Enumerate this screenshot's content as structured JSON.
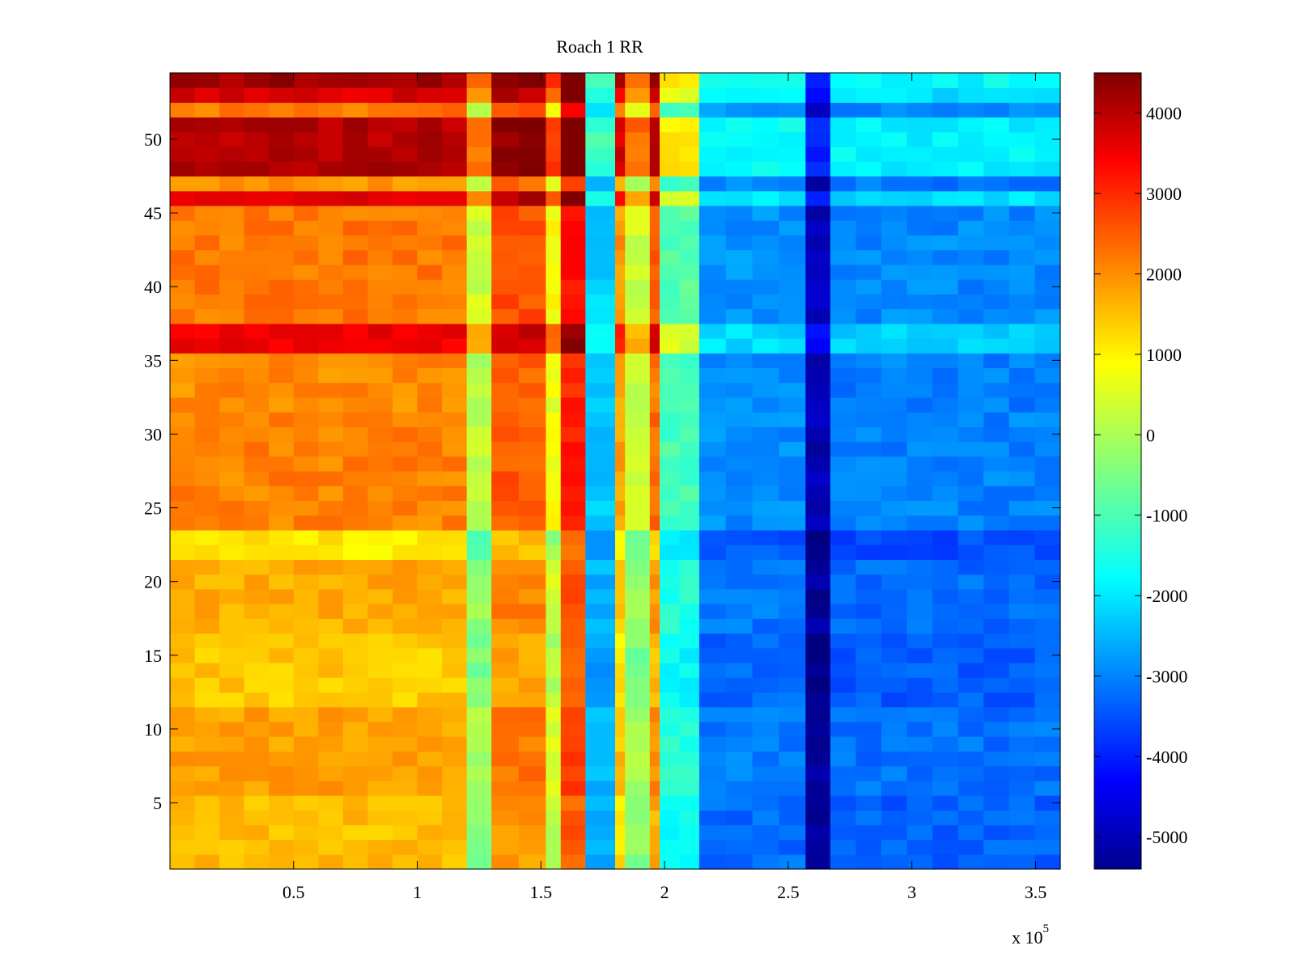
{
  "chart_data": {
    "type": "heatmap",
    "title": "Roach 1 RR",
    "xlabel": "",
    "ylabel": "",
    "x_exponent_label": "x 10",
    "x_exponent_power": "5",
    "xlim": [
      0,
      360000
    ],
    "ylim": [
      0.5,
      54.5
    ],
    "x_ticks": [
      {
        "value": 50000,
        "label": "0.5"
      },
      {
        "value": 100000,
        "label": "1"
      },
      {
        "value": 150000,
        "label": "1.5"
      },
      {
        "value": 200000,
        "label": "2"
      },
      {
        "value": 250000,
        "label": "2.5"
      },
      {
        "value": 300000,
        "label": "3"
      },
      {
        "value": 350000,
        "label": "3.5"
      }
    ],
    "y_ticks": [
      {
        "value": 5,
        "label": "5"
      },
      {
        "value": 10,
        "label": "10"
      },
      {
        "value": 15,
        "label": "15"
      },
      {
        "value": 20,
        "label": "20"
      },
      {
        "value": 25,
        "label": "25"
      },
      {
        "value": 30,
        "label": "30"
      },
      {
        "value": 35,
        "label": "35"
      },
      {
        "value": 40,
        "label": "40"
      },
      {
        "value": 45,
        "label": "45"
      },
      {
        "value": 50,
        "label": "50"
      }
    ],
    "colorbar": {
      "colormap": "jet",
      "clim": [
        -5400,
        4500
      ],
      "ticks": [
        {
          "value": 4000,
          "label": "4000"
        },
        {
          "value": 3000,
          "label": "3000"
        },
        {
          "value": 2000,
          "label": "2000"
        },
        {
          "value": 1000,
          "label": "1000"
        },
        {
          "value": 0,
          "label": "0"
        },
        {
          "value": -1000,
          "label": "-1000"
        },
        {
          "value": -2000,
          "label": "-2000"
        },
        {
          "value": -3000,
          "label": "-3000"
        },
        {
          "value": -4000,
          "label": "-4000"
        },
        {
          "value": -5000,
          "label": "-5000"
        }
      ]
    },
    "rows": 54,
    "column_segments": [
      {
        "x_start": 0,
        "x_end": 120000,
        "base_value": 1800
      },
      {
        "x_start": 120000,
        "x_end": 130000,
        "base_value": 0
      },
      {
        "x_start": 130000,
        "x_end": 152000,
        "base_value": 2200
      },
      {
        "x_start": 152000,
        "x_end": 158000,
        "base_value": 500
      },
      {
        "x_start": 158000,
        "x_end": 168000,
        "base_value": 2800
      },
      {
        "x_start": 168000,
        "x_end": 180000,
        "base_value": -2300
      },
      {
        "x_start": 180000,
        "x_end": 184000,
        "base_value": 1500
      },
      {
        "x_start": 184000,
        "x_end": 194000,
        "base_value": 0
      },
      {
        "x_start": 194000,
        "x_end": 198000,
        "base_value": 2000
      },
      {
        "x_start": 198000,
        "x_end": 214000,
        "base_value": -1200
      },
      {
        "x_start": 214000,
        "x_end": 257000,
        "base_value": -2900
      },
      {
        "x_start": 257000,
        "x_end": 267000,
        "base_value": -5000
      },
      {
        "x_start": 267000,
        "x_end": 360000,
        "base_value": -3000
      }
    ],
    "row_bands": [
      {
        "y_start": 0.5,
        "y_end": 5.5,
        "offset": -400
      },
      {
        "y_start": 5.5,
        "y_end": 11.5,
        "offset": -100
      },
      {
        "y_start": 11.5,
        "y_end": 16.5,
        "offset": -500
      },
      {
        "y_start": 16.5,
        "y_end": 21.5,
        "offset": -200
      },
      {
        "y_start": 21.5,
        "y_end": 23.5,
        "offset": -800
      },
      {
        "y_start": 23.5,
        "y_end": 31.5,
        "offset": 200
      },
      {
        "y_start": 31.5,
        "y_end": 35.5,
        "offset": 100
      },
      {
        "y_start": 35.5,
        "y_end": 37.5,
        "offset": 1600
      },
      {
        "y_start": 37.5,
        "y_end": 45.5,
        "offset": 300
      },
      {
        "y_start": 45.5,
        "y_end": 46.5,
        "offset": 1800
      },
      {
        "y_start": 46.5,
        "y_end": 47.5,
        "offset": 0
      },
      {
        "y_start": 47.5,
        "y_end": 51.5,
        "offset": 2200
      },
      {
        "y_start": 51.5,
        "y_end": 52.5,
        "offset": 300
      },
      {
        "y_start": 52.5,
        "y_end": 53.5,
        "offset": 1800
      },
      {
        "y_start": 53.5,
        "y_end": 54.5,
        "offset": 2400
      }
    ]
  }
}
